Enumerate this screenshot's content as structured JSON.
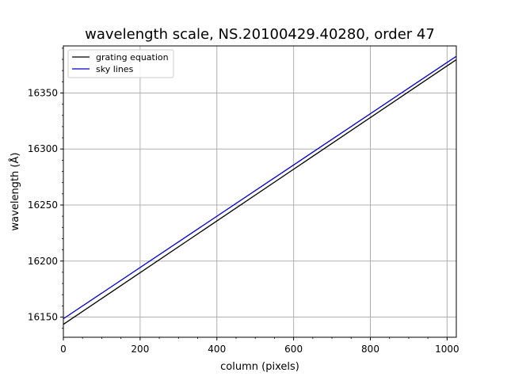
{
  "chart_data": {
    "type": "line",
    "title": "wavelength scale, NS.20100429.40280, order 47",
    "xlabel": "column (pixels)",
    "ylabel": "wavelength (Å)",
    "xlim": [
      0,
      1024
    ],
    "ylim": [
      16132,
      16392
    ],
    "xticks": [
      0,
      200,
      400,
      600,
      800,
      1000
    ],
    "yticks": [
      16150,
      16200,
      16250,
      16300,
      16350
    ],
    "grid": true,
    "legend_position": "top-left",
    "series": [
      {
        "name": "grating equation",
        "color": "#000000",
        "x": [
          0,
          1023
        ],
        "y": [
          16143.5,
          16379.5
        ]
      },
      {
        "name": "sky lines",
        "color": "#0000cc",
        "x": [
          0,
          1023
        ],
        "y": [
          16148.5,
          16382.5
        ]
      }
    ]
  }
}
